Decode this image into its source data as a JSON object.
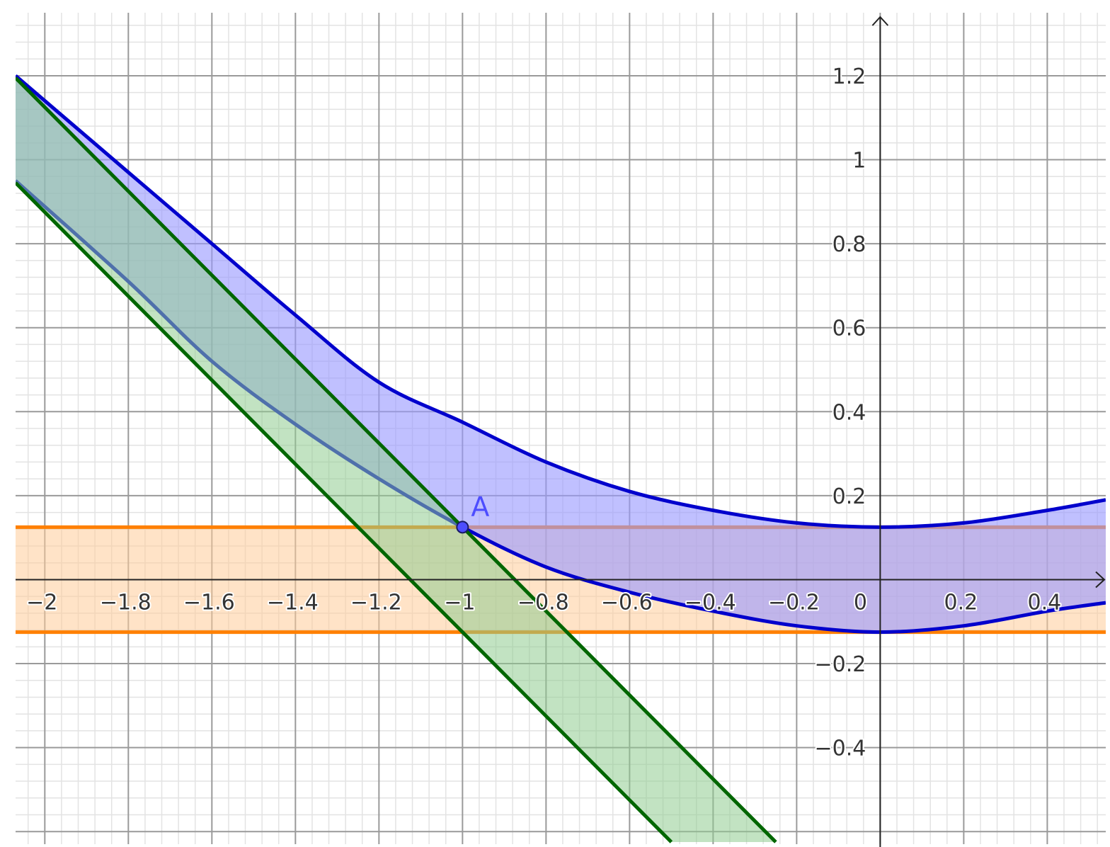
{
  "chart_data": {
    "type": "line",
    "title": "",
    "xlabel": "",
    "ylabel": "",
    "xlim": [
      -2.07,
      0.54
    ],
    "ylim": [
      -0.63,
      1.35
    ],
    "grid": true,
    "minor_grid_divisions": 5,
    "x_ticks": [
      {
        "value": -2,
        "label": "−2"
      },
      {
        "value": -1.8,
        "label": "−1.8"
      },
      {
        "value": -1.6,
        "label": "−1.6"
      },
      {
        "value": -1.4,
        "label": "−1.4"
      },
      {
        "value": -1.2,
        "label": "−1.2"
      },
      {
        "value": -1,
        "label": "−1"
      },
      {
        "value": -0.8,
        "label": "−0.8"
      },
      {
        "value": -0.6,
        "label": "−0.6"
      },
      {
        "value": -0.4,
        "label": "−0.4"
      },
      {
        "value": -0.2,
        "label": "−0.2"
      },
      {
        "value": 0.2,
        "label": "0.2"
      },
      {
        "value": 0.4,
        "label": "0.4"
      }
    ],
    "y_ticks": [
      {
        "value": 1.2,
        "label": "1.2"
      },
      {
        "value": 1,
        "label": "1"
      },
      {
        "value": 0.8,
        "label": "0.8"
      },
      {
        "value": 0.6,
        "label": "0.6"
      },
      {
        "value": 0.4,
        "label": "0.4"
      },
      {
        "value": 0.2,
        "label": "0.2"
      },
      {
        "value": -0.2,
        "label": "−0.2"
      },
      {
        "value": -0.4,
        "label": "−0.4"
      }
    ],
    "origin_label": "0",
    "bands": [
      {
        "kind": "horizontal",
        "lower": -0.125,
        "upper": 0.125,
        "stroke": "#ff8000",
        "fill": "#ffcc99"
      },
      {
        "kind": "curve",
        "upper": {
          "x": [
            -2.07,
            -1.8,
            -1.6,
            -1.4,
            -1.2,
            -1.0,
            -0.8,
            -0.6,
            -0.4,
            -0.2,
            0,
            0.2,
            0.4,
            0.54
          ],
          "y": [
            1.2,
            0.97,
            0.8,
            0.63,
            0.47,
            0.375,
            0.28,
            0.21,
            0.165,
            0.135,
            0.125,
            0.135,
            0.165,
            0.19
          ]
        },
        "lower": {
          "x": [
            -2.07,
            -1.8,
            -1.6,
            -1.4,
            -1.2,
            -1.0,
            -0.8,
            -0.6,
            -0.4,
            -0.2,
            0,
            0.2,
            0.4,
            0.54
          ],
          "y": [
            0.95,
            0.71,
            0.52,
            0.37,
            0.24,
            0.125,
            0.03,
            -0.03,
            -0.075,
            -0.11,
            -0.125,
            -0.11,
            -0.075,
            -0.055
          ]
        },
        "stroke": "#0000cc",
        "fill": "#9999ff"
      },
      {
        "kind": "line",
        "upper": {
          "x": [
            -2.07,
            -1.0,
            -0.25
          ],
          "y": [
            1.195,
            0.125,
            -0.625
          ]
        },
        "lower": {
          "x": [
            -2.07,
            -1.0,
            -0.5
          ],
          "y": [
            0.945,
            -0.125,
            -0.625
          ]
        },
        "stroke": "#006600",
        "fill": "#8fcc8f"
      }
    ],
    "points": [
      {
        "label": "A",
        "x": -1,
        "y": 0.125,
        "color": "#4d4dff"
      }
    ]
  }
}
